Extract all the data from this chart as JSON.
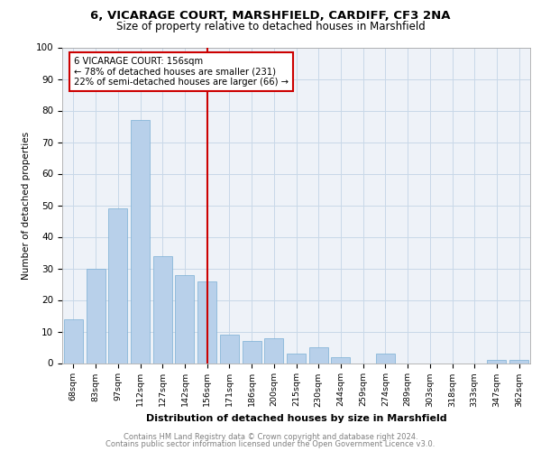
{
  "title1": "6, VICARAGE COURT, MARSHFIELD, CARDIFF, CF3 2NA",
  "title2": "Size of property relative to detached houses in Marshfield",
  "xlabel": "Distribution of detached houses by size in Marshfield",
  "ylabel": "Number of detached properties",
  "categories": [
    "68sqm",
    "83sqm",
    "97sqm",
    "112sqm",
    "127sqm",
    "142sqm",
    "156sqm",
    "171sqm",
    "186sqm",
    "200sqm",
    "215sqm",
    "230sqm",
    "244sqm",
    "259sqm",
    "274sqm",
    "289sqm",
    "303sqm",
    "318sqm",
    "333sqm",
    "347sqm",
    "362sqm"
  ],
  "values": [
    14,
    30,
    49,
    77,
    34,
    28,
    26,
    9,
    7,
    8,
    3,
    5,
    2,
    0,
    3,
    0,
    0,
    0,
    0,
    1,
    1
  ],
  "bar_color": "#b8d0ea",
  "bar_edge_color": "#7aafd4",
  "vline_x_index": 6,
  "vline_color": "#cc0000",
  "annotation_line1": "6 VICARAGE COURT: 156sqm",
  "annotation_line2": "← 78% of detached houses are smaller (231)",
  "annotation_line3": "22% of semi-detached houses are larger (66) →",
  "annotation_box_color": "#cc0000",
  "ylim": [
    0,
    100
  ],
  "yticks": [
    0,
    10,
    20,
    30,
    40,
    50,
    60,
    70,
    80,
    90,
    100
  ],
  "grid_color": "#c8d8e8",
  "footer1": "Contains HM Land Registry data © Crown copyright and database right 2024.",
  "footer2": "Contains public sector information licensed under the Open Government Licence v3.0.",
  "bg_color": "#eef2f8"
}
